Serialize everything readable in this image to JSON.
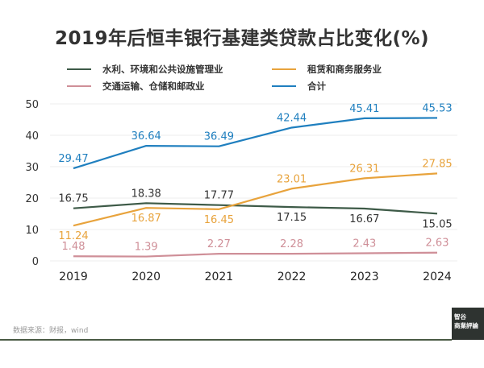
{
  "title": "2019年后恒丰银行基建类贷款占比变化(%)",
  "legend": [
    {
      "label": "水利、环境和公共设施管理业",
      "color": "#3d5a47"
    },
    {
      "label": "租赁和商务服务业",
      "color": "#e8a33c"
    },
    {
      "label": "交通运输、仓储和邮政业",
      "color": "#cf8f98"
    },
    {
      "label": "合计",
      "color": "#1f7fbf"
    }
  ],
  "footer": {
    "source": "数据来源：财报，wind",
    "logo_line1": "智谷",
    "logo_line2": "商業評論"
  },
  "chart_data": {
    "type": "line",
    "title": "2019年后恒丰银行基建类贷款占比变化(%)",
    "xlabel": "",
    "ylabel": "",
    "x": [
      "2019",
      "2020",
      "2021",
      "2022",
      "2023",
      "2024"
    ],
    "ylim": [
      0,
      50
    ],
    "yticks": [
      0,
      10,
      20,
      30,
      40,
      50
    ],
    "grid": true,
    "legend_position": "top",
    "series": [
      {
        "name": "水利、环境和公共设施管理业",
        "color": "#3d5a47",
        "values": [
          16.75,
          18.38,
          17.77,
          17.15,
          16.67,
          15.05
        ],
        "label_pos": [
          "above",
          "above",
          "above",
          "below",
          "below",
          "below"
        ]
      },
      {
        "name": "租赁和商务服务业",
        "color": "#e8a33c",
        "values": [
          11.24,
          16.87,
          16.45,
          23.01,
          26.31,
          27.85
        ],
        "label_pos": [
          "below",
          "below",
          "below",
          "above",
          "above",
          "above"
        ]
      },
      {
        "name": "交通运输、仓储和邮政业",
        "color": "#cf8f98",
        "values": [
          1.48,
          1.39,
          2.27,
          2.28,
          2.43,
          2.63
        ],
        "label_pos": [
          "above",
          "above",
          "above",
          "above",
          "above",
          "above"
        ]
      },
      {
        "name": "合计",
        "color": "#1f7fbf",
        "values": [
          29.47,
          36.64,
          36.49,
          42.44,
          45.41,
          45.53
        ],
        "label_pos": [
          "above",
          "above",
          "above",
          "above",
          "above",
          "above"
        ]
      }
    ]
  }
}
